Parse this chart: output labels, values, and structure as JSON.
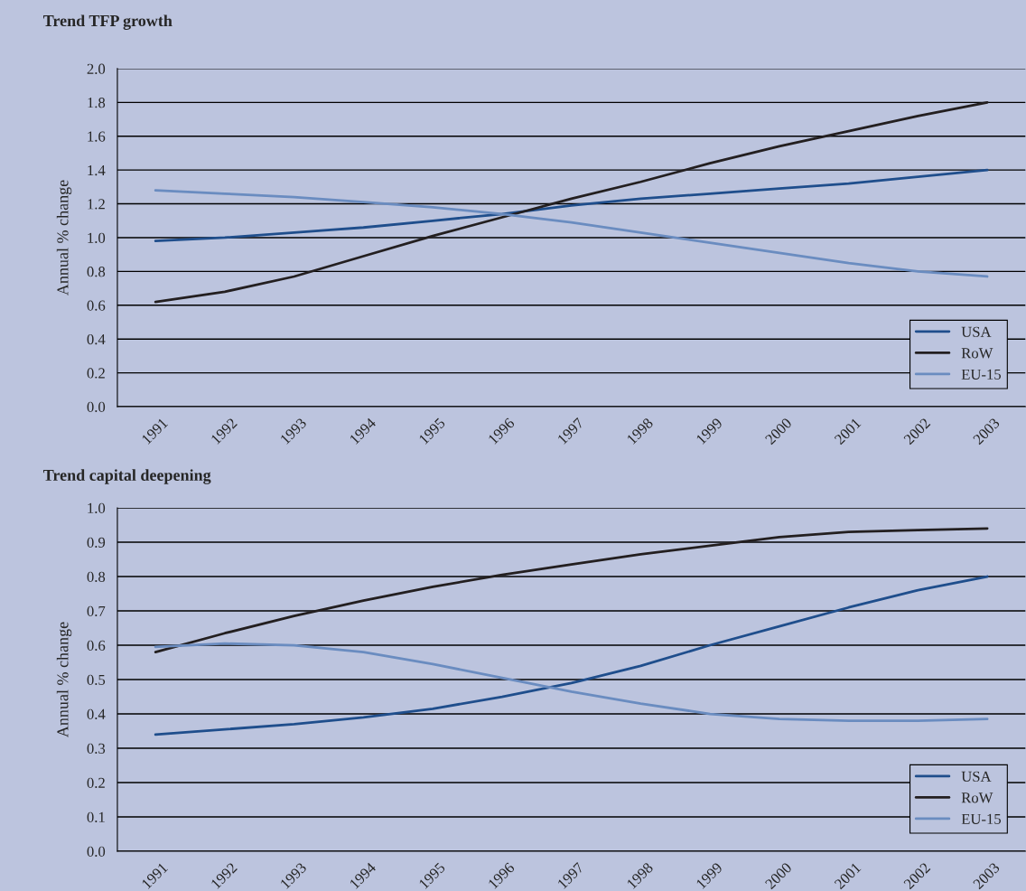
{
  "chart_data": [
    {
      "type": "line",
      "title": "Trend TFP growth",
      "ylabel": "Annual % change",
      "categories": [
        "1991",
        "1992",
        "1993",
        "1994",
        "1995",
        "1996",
        "1997",
        "1998",
        "1999",
        "2000",
        "2001",
        "2002",
        "2003"
      ],
      "series": [
        {
          "name": "USA",
          "color": "#1f4e8c",
          "values": [
            0.98,
            1.0,
            1.03,
            1.06,
            1.1,
            1.14,
            1.19,
            1.23,
            1.26,
            1.29,
            1.32,
            1.36,
            1.4
          ]
        },
        {
          "name": "RoW",
          "color": "#231f20",
          "values": [
            0.62,
            0.68,
            0.77,
            0.89,
            1.01,
            1.12,
            1.23,
            1.33,
            1.44,
            1.54,
            1.63,
            1.72,
            1.8
          ]
        },
        {
          "name": "EU-15",
          "color": "#6a8cc0",
          "values": [
            1.28,
            1.26,
            1.24,
            1.21,
            1.18,
            1.14,
            1.09,
            1.03,
            0.97,
            0.91,
            0.85,
            0.8,
            0.77
          ]
        }
      ],
      "ylim": [
        0,
        2.0
      ],
      "yticks": [
        {
          "value": 0,
          "label": "0.0"
        },
        {
          "value": 0.2,
          "label": "0.2"
        },
        {
          "value": 0.4,
          "label": "0.4"
        },
        {
          "value": 0.6,
          "label": "0.6"
        },
        {
          "value": 0.8,
          "label": "0.8"
        },
        {
          "value": 1.0,
          "label": "1.0"
        },
        {
          "value": 1.2,
          "label": "1.2"
        },
        {
          "value": 1.4,
          "label": "1.4"
        },
        {
          "value": 1.6,
          "label": "1.6"
        },
        {
          "value": 1.8,
          "label": "1.8"
        },
        {
          "value": 2.0,
          "label": "2.0"
        }
      ],
      "grid": "y",
      "legend": "bottom right"
    },
    {
      "type": "line",
      "title": "Trend capital deepening",
      "ylabel": "Annual % change",
      "categories": [
        "1991",
        "1992",
        "1993",
        "1994",
        "1995",
        "1996",
        "1997",
        "1998",
        "1999",
        "2000",
        "2001",
        "2002",
        "2003"
      ],
      "series": [
        {
          "name": "USA",
          "color": "#1f4e8c",
          "values": [
            0.34,
            0.355,
            0.37,
            0.39,
            0.415,
            0.45,
            0.49,
            0.54,
            0.6,
            0.655,
            0.71,
            0.76,
            0.8
          ]
        },
        {
          "name": "RoW",
          "color": "#231f20",
          "values": [
            0.58,
            0.635,
            0.685,
            0.73,
            0.77,
            0.805,
            0.835,
            0.865,
            0.89,
            0.915,
            0.93,
            0.935,
            0.94
          ]
        },
        {
          "name": "EU-15",
          "color": "#6a8cc0",
          "values": [
            0.595,
            0.605,
            0.6,
            0.58,
            0.545,
            0.505,
            0.465,
            0.43,
            0.4,
            0.385,
            0.38,
            0.38,
            0.385
          ]
        }
      ],
      "ylim": [
        0,
        1.0
      ],
      "yticks": [
        {
          "value": 0,
          "label": "0.0"
        },
        {
          "value": 0.1,
          "label": "0.1"
        },
        {
          "value": 0.2,
          "label": "0.2"
        },
        {
          "value": 0.3,
          "label": "0.3"
        },
        {
          "value": 0.4,
          "label": "0.4"
        },
        {
          "value": 0.5,
          "label": "0.5"
        },
        {
          "value": 0.6,
          "label": "0.6"
        },
        {
          "value": 0.7,
          "label": "0.7"
        },
        {
          "value": 0.8,
          "label": "0.8"
        },
        {
          "value": 0.9,
          "label": "0.9"
        },
        {
          "value": 1.0,
          "label": "1.0"
        }
      ],
      "grid": "y",
      "legend": "bottom right"
    }
  ]
}
